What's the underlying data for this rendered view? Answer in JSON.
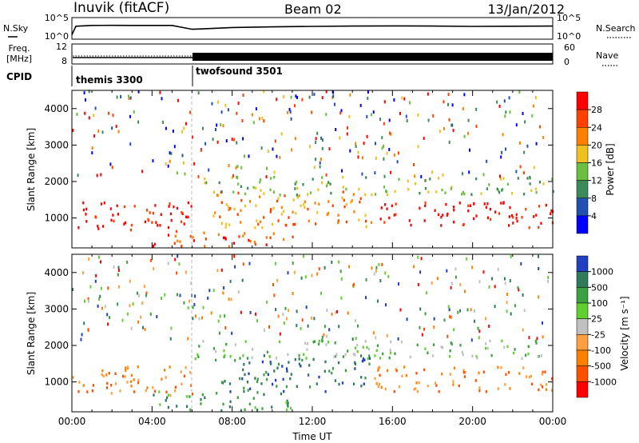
{
  "header": {
    "station": "Inuvik (fitACF)",
    "beam": "Beam 02",
    "date": "13/Jan/2012"
  },
  "side_labels": {
    "nsky": "N.Sky",
    "nsearch": "N.Search",
    "freq": "Freq.",
    "freq_unit": "[MHz]",
    "nave": "Nave",
    "cpid": "CPID"
  },
  "chart_data": [
    {
      "type": "line",
      "panel": "noise",
      "series": [
        {
          "name": "N.Sky",
          "x_hours": [
            0,
            0.2,
            1,
            2,
            3,
            4,
            5,
            6,
            7,
            8,
            10,
            12,
            14,
            16,
            18,
            20,
            22,
            24
          ],
          "values": [
            10,
            1000,
            1500,
            1600,
            1500,
            1500,
            1500,
            200,
            300,
            500,
            700,
            900,
            1100,
            1200,
            1100,
            900,
            1000,
            1100
          ]
        },
        {
          "name": "N.Search",
          "x_hours": [
            0,
            6
          ],
          "values": [
            1,
            1
          ]
        }
      ],
      "y_ticks_left": [
        "10^0",
        "10^5"
      ],
      "y_ticks_right": [
        "10^0",
        "10^5"
      ],
      "ylim": [
        "10^0",
        "10^5"
      ],
      "log_scale": true
    },
    {
      "type": "line",
      "panel": "frequency",
      "y_ticks_left": [
        "8",
        "12"
      ],
      "y_ticks_right": [
        "0",
        "60"
      ],
      "series": [
        {
          "name": "Freq.",
          "x_hours": [
            0,
            24
          ],
          "values": [
            10.5,
            10.5
          ]
        },
        {
          "name": "Nave",
          "x_hours": [
            0,
            6,
            6,
            24
          ],
          "values": [
            25,
            25,
            35,
            35
          ]
        }
      ]
    },
    {
      "type": "table",
      "panel": "cpid",
      "segments": [
        {
          "label": "themis 3300",
          "start_hour": 0,
          "end_hour": 6
        },
        {
          "label": "twofsound 3501",
          "start_hour": 6,
          "end_hour": 24
        }
      ]
    },
    {
      "type": "heatmap",
      "panel": "power",
      "ylabel": "Slant Range [km]",
      "xlim": [
        0,
        24
      ],
      "ylim": [
        180,
        4500
      ],
      "y_ticks": [
        "1000",
        "2000",
        "3000",
        "4000"
      ],
      "colorbar_label": "Power [dB]",
      "colorbar_ticks": [
        "4",
        "8",
        "12",
        "16",
        "20",
        "24",
        "28"
      ],
      "colors": [
        "#0000ff",
        "#2050b0",
        "#3a8a5a",
        "#6abf40",
        "#f0c020",
        "#ff8000",
        "#ff4000",
        "#ff0000"
      ],
      "echo_bands": [
        {
          "t0": 0,
          "t1": 6,
          "r0": 600,
          "r1": 1400,
          "level": 7
        },
        {
          "t0": 4,
          "t1": 11,
          "r0": 180,
          "r1": 600,
          "level": 6
        },
        {
          "t0": 7,
          "t1": 15,
          "r0": 700,
          "r1": 1700,
          "level": 5
        },
        {
          "t0": 15,
          "t1": 24,
          "r0": 700,
          "r1": 1400,
          "level": 7
        },
        {
          "t0": 6,
          "t1": 24,
          "r0": 1600,
          "r1": 2100,
          "level": 3
        }
      ]
    },
    {
      "type": "heatmap",
      "panel": "velocity",
      "xlabel": "Time UT",
      "ylabel": "Slant Range [km]",
      "xlim": [
        0,
        24
      ],
      "ylim": [
        180,
        4500
      ],
      "x_ticks": [
        "00:00",
        "04:00",
        "08:00",
        "12:00",
        "16:00",
        "20:00",
        "00:00"
      ],
      "y_ticks": [
        "1000",
        "2000",
        "3000",
        "4000"
      ],
      "colorbar_label": "Velocity [m s⁻¹]",
      "colorbar_ticks": [
        "1000",
        "500",
        "100",
        "25",
        "-25",
        "-100",
        "-500",
        "-1000"
      ],
      "colors": [
        "#2040c0",
        "#2e7a5a",
        "#3aa040",
        "#60d030",
        "#c0c0c0",
        "#ffa040",
        "#ff8000",
        "#ff5000",
        "#ff0000"
      ],
      "echo_bands": [
        {
          "t0": 0,
          "t1": 6,
          "r0": 600,
          "r1": 1400,
          "level": 6
        },
        {
          "t0": 4,
          "t1": 11,
          "r0": 180,
          "r1": 700,
          "level": 2
        },
        {
          "t0": 7,
          "t1": 15,
          "r0": 700,
          "r1": 1700,
          "level": 1
        },
        {
          "t0": 15,
          "t1": 24,
          "r0": 700,
          "r1": 1400,
          "level": 6
        },
        {
          "t0": 6,
          "t1": 24,
          "r0": 1600,
          "r1": 2100,
          "level": 3
        }
      ]
    }
  ]
}
